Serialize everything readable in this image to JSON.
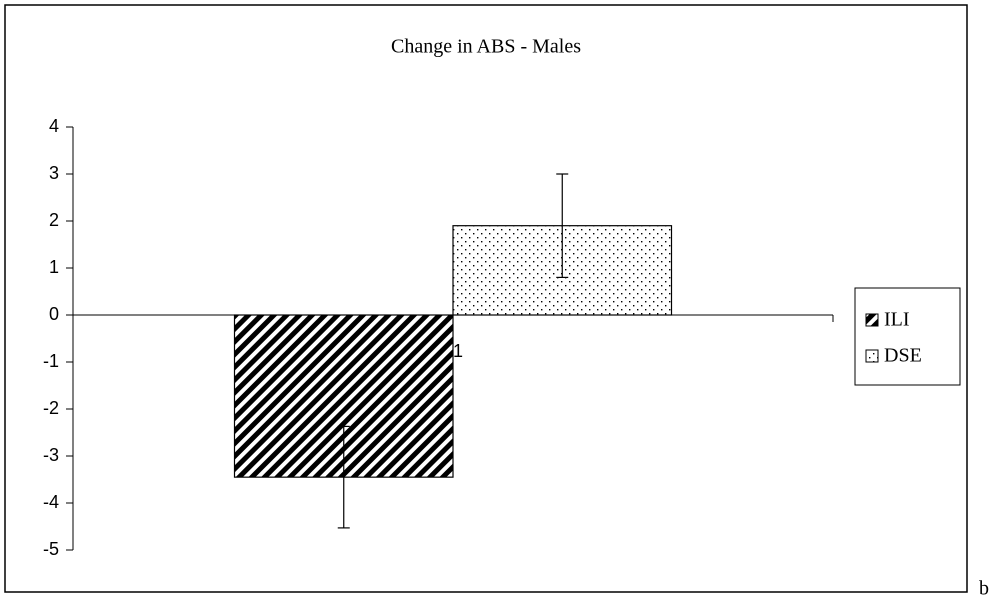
{
  "chart_data": {
    "type": "bar",
    "title": "Change in ABS - Males",
    "categories": [
      "1"
    ],
    "series": [
      {
        "name": "ILI",
        "color": "#000000",
        "pattern": "hatch",
        "values": [
          -3.45
        ],
        "errors": [
          1.08
        ]
      },
      {
        "name": "DSE",
        "color": "#000000",
        "pattern": "dots",
        "values": [
          1.9
        ],
        "errors": [
          1.1
        ]
      }
    ],
    "ylim": [
      -5,
      4
    ],
    "yticks": [
      -5,
      -4,
      -3,
      -2,
      -1,
      0,
      1,
      2,
      3,
      4
    ],
    "legend": "right"
  },
  "panel_label": "b"
}
